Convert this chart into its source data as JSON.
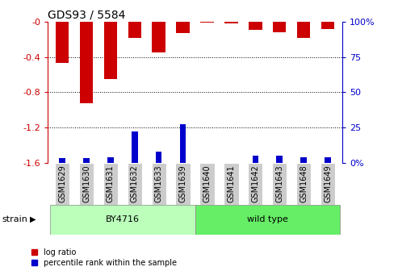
{
  "title": "GDS93 / 5584",
  "samples": [
    "GSM1629",
    "GSM1630",
    "GSM1631",
    "GSM1632",
    "GSM1633",
    "GSM1639",
    "GSM1640",
    "GSM1641",
    "GSM1642",
    "GSM1643",
    "GSM1648",
    "GSM1649"
  ],
  "log_ratio": [
    -0.47,
    -0.93,
    -0.65,
    -0.18,
    -0.35,
    -0.13,
    -0.01,
    -0.02,
    -0.09,
    -0.12,
    -0.18,
    -0.08
  ],
  "percentile_rank": [
    3,
    3,
    4,
    22,
    8,
    27,
    0,
    0,
    5,
    5,
    4,
    4
  ],
  "strain_groups": [
    {
      "label": "BY4716",
      "start": 0,
      "end": 6,
      "color": "#bbffbb"
    },
    {
      "label": "wild type",
      "start": 6,
      "end": 12,
      "color": "#66ee66"
    }
  ],
  "ylim": [
    -1.6,
    0.0
  ],
  "yticks": [
    0.0,
    -0.4,
    -0.8,
    -1.2,
    -1.6
  ],
  "ytick_labels": [
    "-0",
    "-0.4",
    "-0.8",
    "-1.2",
    "-1.6"
  ],
  "right_yticks": [
    0,
    25,
    50,
    75,
    100
  ],
  "right_ytick_labels": [
    "0%",
    "25",
    "50",
    "75",
    "100%"
  ],
  "bar_color_red": "#cc0000",
  "bar_color_blue": "#0000cc",
  "bar_width": 0.55,
  "blue_bar_width": 0.25,
  "tick_color_left": "#cc0000",
  "tick_color_right": "#0000cc",
  "bg_xtick": "#cccccc",
  "strain_label": "strain",
  "legend_items": [
    "log ratio",
    "percentile rank within the sample"
  ],
  "grid_lines": [
    -0.4,
    -0.8,
    -1.2
  ],
  "title_fontsize": 10,
  "label_fontsize": 7,
  "strain_fontsize": 8,
  "legend_fontsize": 7
}
